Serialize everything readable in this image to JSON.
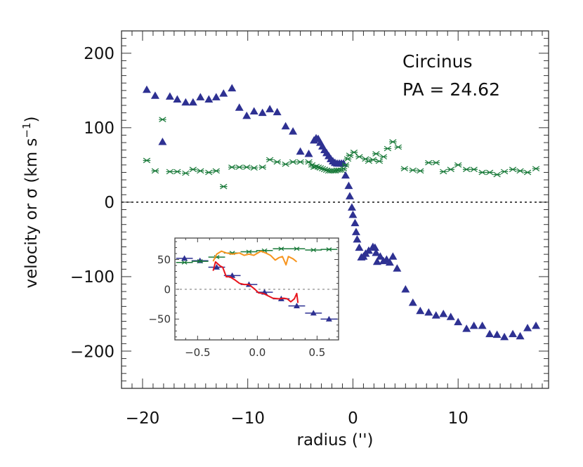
{
  "chart_data": [
    {
      "type": "scatter",
      "annotations": [
        "Circinus",
        "PA = 24.62"
      ],
      "xlabel": "radius ('')",
      "ylabel": "velocity or σ (km s",
      "ylabel_superscript": "−1",
      "ylabel_suffix": ")",
      "xlim": [
        -22,
        18.6
      ],
      "ylim": [
        -250,
        230
      ],
      "xticks": [
        -20,
        -10,
        0,
        10
      ],
      "xtick_labels": [
        "−20",
        "−10",
        "0",
        "10"
      ],
      "yticks": [
        200,
        100,
        0,
        -100,
        -200
      ],
      "ytick_labels": [
        "200",
        "100",
        "0",
        "−100",
        "−200"
      ],
      "zero_line": "dotted",
      "grid": false,
      "colors": {
        "velocity": "#2e3192",
        "sigma": "#1a7a3a"
      },
      "series": [
        {
          "marker": "triangle",
          "x": [
            -19.6,
            -18.8,
            -18.1,
            -17.4,
            -16.7,
            -15.9,
            -15.2,
            -14.5,
            -13.7,
            -13.0,
            -12.3,
            -11.5,
            -10.8,
            -10.1,
            -9.4,
            -8.6,
            -7.9,
            -7.2,
            -6.4,
            -5.7,
            -5.0,
            -4.2,
            -3.7,
            -3.5,
            -3.3,
            -3.1,
            -2.9,
            -2.7,
            -2.5,
            -2.3,
            -2.1,
            -1.9,
            -1.7,
            -1.5,
            -1.3,
            -1.1,
            -0.9,
            -0.7,
            -0.4,
            -0.3,
            -0.1,
            0.0,
            0.2,
            0.3,
            0.4,
            0.6,
            0.8,
            1.0,
            1.2,
            1.5,
            1.9,
            2.1,
            2.2,
            2.3,
            2.6,
            2.9,
            3.2,
            3.5,
            3.8,
            4.2,
            5.0,
            5.7,
            6.4,
            7.2,
            7.9,
            8.6,
            9.3,
            10.0,
            10.8,
            11.5,
            12.3,
            13.0,
            13.7,
            14.4,
            15.2,
            15.9,
            16.6,
            17.4
          ],
          "y": [
            151,
            143,
            81,
            142,
            138,
            134,
            134,
            141,
            138,
            141,
            146,
            153,
            127,
            116,
            122,
            120,
            125,
            121,
            102,
            95,
            68,
            65,
            83,
            86,
            85,
            80,
            75,
            70,
            66,
            62,
            58,
            55,
            53,
            52,
            52,
            52,
            52,
            36,
            22,
            8,
            -7,
            -17,
            -28,
            -40,
            -50,
            -61,
            -74,
            -73,
            -69,
            -65,
            -60,
            -61,
            -68,
            -80,
            -73,
            -79,
            -77,
            -81,
            -73,
            -89,
            -117,
            -135,
            -146,
            -148,
            -152,
            -150,
            -154,
            -161,
            -170,
            -166,
            -166,
            -177,
            -178,
            -181,
            -177,
            -180,
            -169,
            -166
          ]
        },
        {
          "marker": "cross",
          "x": [
            -19.6,
            -18.8,
            -18.1,
            -17.4,
            -16.7,
            -15.9,
            -15.2,
            -14.5,
            -13.7,
            -13.0,
            -12.3,
            -11.5,
            -10.8,
            -10.1,
            -9.4,
            -8.6,
            -7.9,
            -7.2,
            -6.4,
            -5.7,
            -5.0,
            -4.2,
            -3.9,
            -3.7,
            -3.5,
            -3.3,
            -3.1,
            -2.9,
            -2.7,
            -2.5,
            -2.3,
            -2.1,
            -1.9,
            -1.7,
            -1.5,
            -1.3,
            -1.1,
            -0.9,
            -0.7,
            -0.5,
            -0.3,
            0.1,
            0.6,
            1.2,
            1.5,
            1.9,
            2.2,
            2.5,
            2.9,
            3.3,
            3.8,
            4.3,
            4.9,
            5.7,
            6.4,
            7.2,
            7.9,
            8.6,
            9.3,
            10.0,
            10.8,
            11.5,
            12.3,
            13.0,
            13.7,
            14.4,
            15.2,
            15.9,
            16.6,
            17.4
          ],
          "y": [
            56,
            42,
            111,
            41,
            41,
            39,
            44,
            42,
            40,
            42,
            21,
            47,
            47,
            47,
            46,
            47,
            57,
            54,
            51,
            54,
            54,
            54,
            50,
            47,
            48,
            47,
            46,
            45,
            44,
            43,
            42,
            42,
            42,
            42,
            43,
            43,
            43,
            45,
            50,
            58,
            63,
            67,
            61,
            58,
            55,
            57,
            65,
            55,
            61,
            72,
            81,
            74,
            45,
            43,
            42,
            53,
            53,
            41,
            44,
            50,
            44,
            44,
            40,
            40,
            37,
            41,
            44,
            42,
            40,
            45
          ]
        }
      ]
    },
    {
      "type": "scatter",
      "inset": true,
      "xlim": [
        -0.69,
        0.68
      ],
      "ylim": [
        -85,
        86
      ],
      "xticks": [
        -0.5,
        0.0,
        0.5
      ],
      "xtick_labels": [
        "−0.5",
        "0.0",
        "0.5"
      ],
      "yticks": [
        50,
        0,
        -50
      ],
      "ytick_labels": [
        "50",
        "0",
        "−50"
      ],
      "zero_line": "dotted",
      "colors": {
        "velocity": "#2e3192",
        "sigma": "#1a7a3a",
        "velocity_line": "#e8141c",
        "sigma_line": "#f7941d"
      },
      "series": [
        {
          "marker": "triangle",
          "xerr": 0.07,
          "x": [
            -0.61,
            -0.48,
            -0.34,
            -0.21,
            -0.07,
            0.06,
            0.2,
            0.33,
            0.47,
            0.6
          ],
          "y": [
            52,
            48,
            37,
            23,
            8,
            -5,
            -16,
            -28,
            -40,
            -50
          ]
        },
        {
          "marker": "cross",
          "xerr": 0.07,
          "x": [
            -0.61,
            -0.48,
            -0.34,
            -0.21,
            -0.07,
            0.06,
            0.2,
            0.33,
            0.47,
            0.6
          ],
          "y": [
            45,
            47,
            54,
            61,
            63,
            65,
            68,
            68,
            66,
            67
          ]
        },
        {
          "marker": "line-orange",
          "x": [
            -0.37,
            -0.34,
            -0.3,
            -0.26,
            -0.21,
            -0.15,
            -0.11,
            -0.07,
            -0.03,
            0.03,
            0.07,
            0.11,
            0.15,
            0.18,
            0.21,
            0.24,
            0.26,
            0.3,
            0.33
          ],
          "y": [
            47,
            59,
            64,
            61,
            59,
            61,
            57,
            59,
            57,
            64,
            61,
            57,
            49,
            53,
            55,
            41,
            55,
            51,
            46
          ]
        },
        {
          "marker": "line-red",
          "x": [
            -0.37,
            -0.35,
            -0.31,
            -0.29,
            -0.26,
            -0.23,
            -0.19,
            -0.15,
            -0.11,
            -0.07,
            -0.02,
            0.01,
            0.05,
            0.09,
            0.13,
            0.18,
            0.22,
            0.25,
            0.28,
            0.31,
            0.33,
            0.34
          ],
          "y": [
            31,
            46,
            39,
            37,
            21,
            21,
            16,
            10,
            8,
            8,
            0,
            -6,
            -7,
            -11,
            -15,
            -16,
            -15,
            -16,
            -21,
            -16,
            -7,
            -23
          ]
        }
      ]
    }
  ]
}
